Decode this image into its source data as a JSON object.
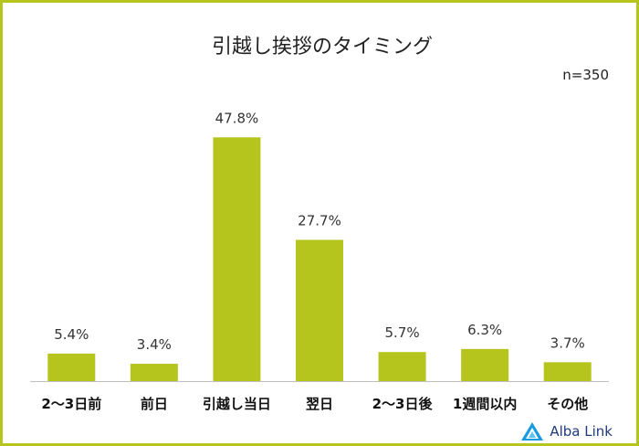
{
  "chart_data": {
    "type": "bar",
    "title": "引越し挨拶のタイミング",
    "note": "n=350",
    "categories": [
      "2〜3日前",
      "前日",
      "引越し当日",
      "翌日",
      "2〜3日後",
      "1週間以内",
      "その他"
    ],
    "values": [
      5.4,
      3.4,
      47.8,
      27.7,
      5.7,
      6.3,
      3.7
    ],
    "data_labels": [
      "5.4%",
      "3.4%",
      "47.8%",
      "27.7%",
      "5.7%",
      "6.3%",
      "3.7%"
    ],
    "value_unit": "%",
    "grid": false,
    "legend": "none",
    "bar_color": "#b5c51e"
  },
  "brand": {
    "name": "Alba Link",
    "accent": "#b5c51e",
    "logo_color": "#1a9be0"
  }
}
